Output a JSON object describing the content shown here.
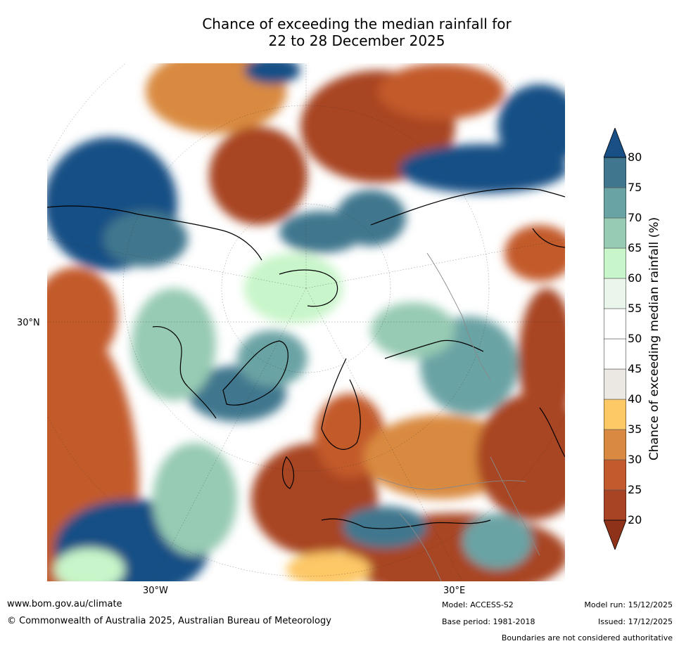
{
  "title_line1": "Chance of exceeding the median rainfall for",
  "title_line2": "22 to 28 December 2025",
  "map": {
    "latitude_label": "30°N",
    "longitude_labels": [
      "30°W",
      "30°E"
    ]
  },
  "colorbar": {
    "label": "Chance of exceeding median rainfall (%)",
    "ticks": [
      "20",
      "25",
      "30",
      "35",
      "40",
      "45",
      "50",
      "55",
      "60",
      "65",
      "70",
      "75",
      "80"
    ],
    "colors": [
      "#8e3319",
      "#a84424",
      "#c35a2c",
      "#d98a40",
      "#fdc866",
      "#ebe8e4",
      "#ffffff",
      "#ffffff",
      "#eaf5ec",
      "#c8f5c9",
      "#97cbb3",
      "#6aa3a4",
      "#41778e",
      "#184f85"
    ]
  },
  "footer": {
    "website": "www.bom.gov.au/climate",
    "copyright": "© Commonwealth of Australia 2025, Australian Bureau of Meteorology",
    "model": "Model: ACCESS-S2",
    "base_period": "Base period: 1981-2018",
    "model_run": "Model run: 15/12/2025",
    "issued": "Issued: 17/12/2025",
    "disclaimer": "Boundaries are not considered authoritative"
  }
}
